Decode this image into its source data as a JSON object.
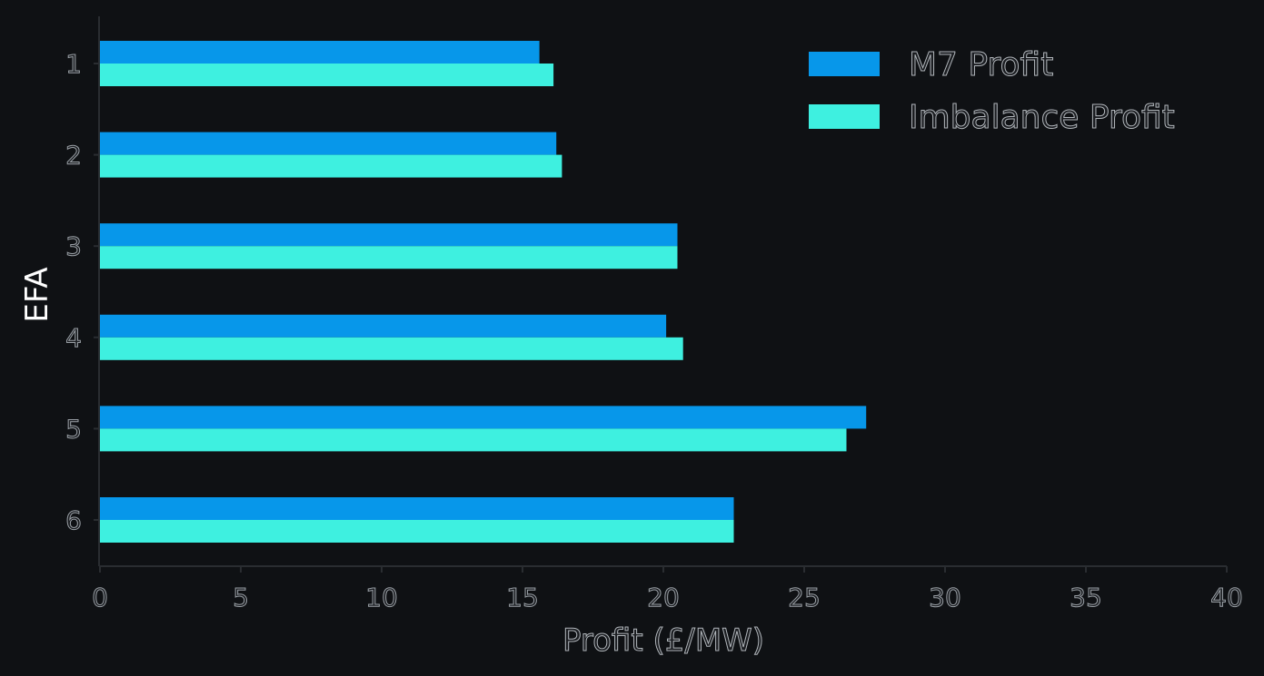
{
  "chart_data": {
    "type": "bar",
    "orientation": "horizontal",
    "categories": [
      "1",
      "2",
      "3",
      "4",
      "5",
      "6"
    ],
    "series": [
      {
        "name": "M7 Profit",
        "values": [
          15.6,
          16.2,
          20.5,
          20.1,
          27.2,
          22.5
        ],
        "color": "#0797ea"
      },
      {
        "name": "Imbalance Profit",
        "values": [
          16.1,
          16.4,
          20.5,
          20.7,
          26.5,
          22.5
        ],
        "color": "#3ef0e0"
      }
    ],
    "xlabel": "Profit (£/MW)",
    "ylabel": "EFA",
    "xlim": [
      0,
      40
    ],
    "xticks": [
      0,
      5,
      10,
      15,
      20,
      25,
      30,
      35,
      40
    ],
    "legend_position": "top-right",
    "grid": false,
    "background": "#0f1114"
  }
}
